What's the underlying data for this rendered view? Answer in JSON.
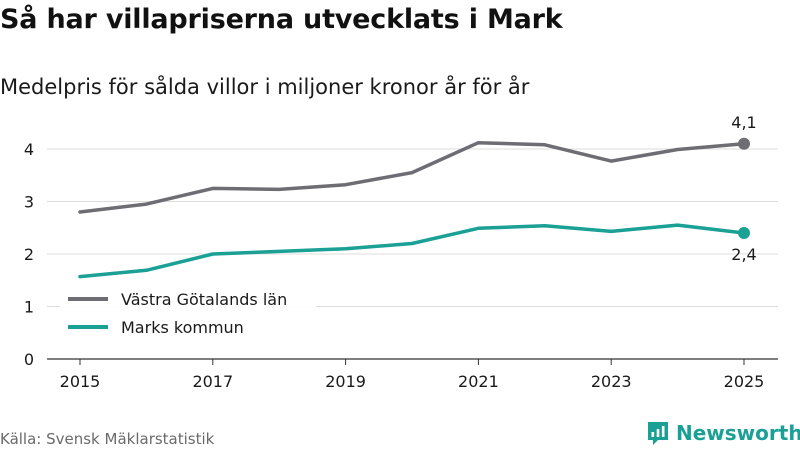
{
  "title": "Så har villapriserna utvecklats i Mark",
  "subtitle": "Medelpris för sålda villor i miljoner kronor år för år",
  "source": "Källa: Svensk Mäklarstatistik",
  "brand": {
    "name": "Newsworthy",
    "icon": "newsworthy-logo-icon",
    "color": "#1aa095"
  },
  "chart_data": {
    "type": "line",
    "title": "Så har villapriserna utvecklats i Mark",
    "subtitle": "Medelpris för sålda villor i miljoner kronor år för år",
    "xlabel": "",
    "ylabel": "",
    "x": [
      2015,
      2016,
      2017,
      2018,
      2019,
      2020,
      2021,
      2022,
      2023,
      2024,
      2025
    ],
    "xticks": [
      2015,
      2017,
      2019,
      2021,
      2023,
      2025
    ],
    "xlim": [
      2015,
      2025
    ],
    "yticks": [
      0,
      1,
      2,
      3,
      4
    ],
    "ylim": [
      0,
      4.4
    ],
    "grid": true,
    "legend_position": "bottom-left",
    "series": [
      {
        "name": "Västra Götalands län",
        "color": "#6d6d73",
        "values": [
          2.8,
          2.95,
          3.25,
          3.23,
          3.32,
          3.55,
          4.12,
          4.08,
          3.77,
          3.99,
          4.1
        ],
        "end_label": "4,1",
        "end_label_position": "above"
      },
      {
        "name": "Marks kommun",
        "color": "#1aa095",
        "values": [
          1.57,
          1.69,
          2.0,
          2.05,
          2.1,
          2.2,
          2.49,
          2.54,
          2.43,
          2.55,
          2.4
        ],
        "end_label": "2,4",
        "end_label_position": "below"
      }
    ]
  }
}
